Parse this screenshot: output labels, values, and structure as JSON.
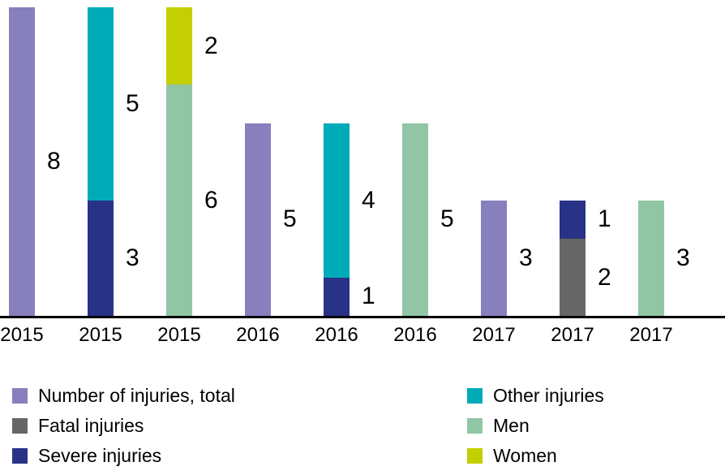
{
  "colors": {
    "total": "#8780BC",
    "fatal": "#666666",
    "severe": "#283287",
    "other": "#00ABB8",
    "men": "#90C6A4",
    "women": "#C3CF00",
    "axis": "#000000",
    "text": "#000000"
  },
  "chart_data": {
    "type": "bar",
    "stacked": true,
    "title": "",
    "xlabel": "",
    "ylabel": "",
    "ylim": [
      0,
      8
    ],
    "grid": false,
    "legend_position": "bottom",
    "categories": [
      "2015",
      "2015",
      "2015",
      "2016",
      "2016",
      "2016",
      "2017",
      "2017",
      "2017"
    ],
    "bars": [
      {
        "year": "2015",
        "segments": [
          {
            "series": "Number of injuries, total",
            "key": "total",
            "value": 8,
            "label": "8"
          }
        ]
      },
      {
        "year": "2015",
        "segments": [
          {
            "series": "Severe injuries",
            "key": "severe",
            "value": 3,
            "label": "3"
          },
          {
            "series": "Other injuries",
            "key": "other",
            "value": 5,
            "label": "5"
          }
        ]
      },
      {
        "year": "2015",
        "segments": [
          {
            "series": "Men",
            "key": "men",
            "value": 6,
            "label": "6"
          },
          {
            "series": "Women",
            "key": "women",
            "value": 2,
            "label": "2"
          }
        ]
      },
      {
        "year": "2016",
        "segments": [
          {
            "series": "Number of injuries, total",
            "key": "total",
            "value": 5,
            "label": "5"
          }
        ]
      },
      {
        "year": "2016",
        "segments": [
          {
            "series": "Severe injuries",
            "key": "severe",
            "value": 1,
            "label": "1"
          },
          {
            "series": "Other injuries",
            "key": "other",
            "value": 4,
            "label": "4"
          }
        ]
      },
      {
        "year": "2016",
        "segments": [
          {
            "series": "Men",
            "key": "men",
            "value": 5,
            "label": "5"
          }
        ]
      },
      {
        "year": "2017",
        "segments": [
          {
            "series": "Number of injuries, total",
            "key": "total",
            "value": 3,
            "label": "3"
          }
        ]
      },
      {
        "year": "2017",
        "segments": [
          {
            "series": "Fatal injuries",
            "key": "fatal",
            "value": 2,
            "label": "2"
          },
          {
            "series": "Severe injuries",
            "key": "severe",
            "value": 1,
            "label": "1"
          }
        ]
      },
      {
        "year": "2017",
        "segments": [
          {
            "series": "Men",
            "key": "men",
            "value": 3,
            "label": "3"
          }
        ]
      }
    ],
    "legend": {
      "left": [
        {
          "key": "total",
          "label": "Number of injuries, total"
        },
        {
          "key": "fatal",
          "label": "Fatal injuries"
        },
        {
          "key": "severe",
          "label": "Severe injuries"
        }
      ],
      "right": [
        {
          "key": "other",
          "label": "Other injuries"
        },
        {
          "key": "men",
          "label": "Men"
        },
        {
          "key": "women",
          "label": "Women"
        }
      ]
    }
  }
}
